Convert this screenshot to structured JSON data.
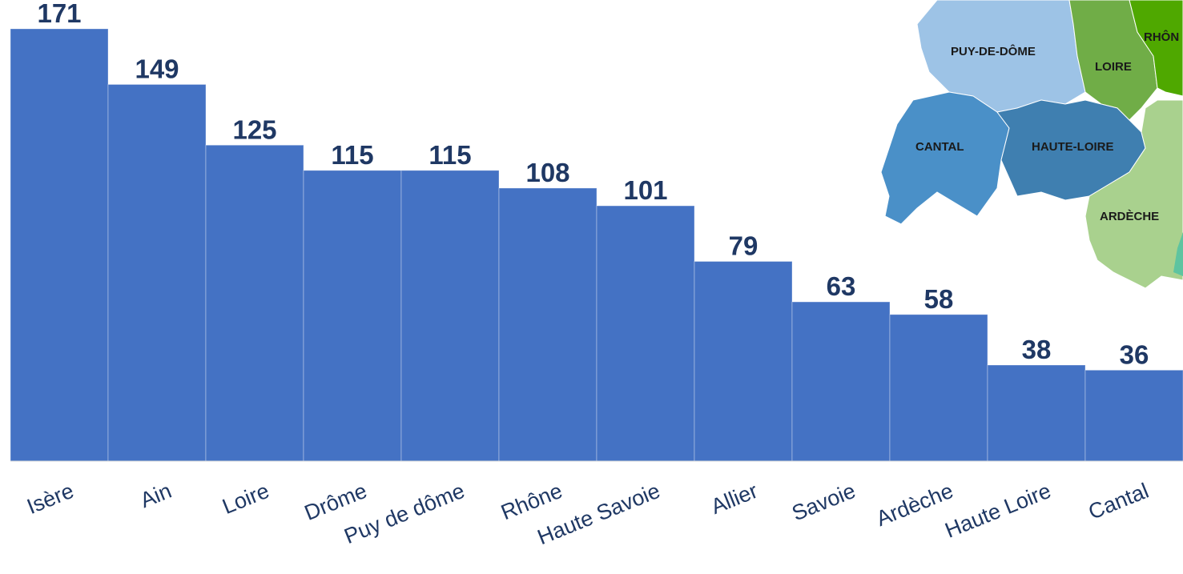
{
  "chart_data": {
    "type": "bar",
    "categories": [
      "Isère",
      "Ain",
      "Loire",
      "Drôme",
      "Puy de dôme",
      "Rhône",
      "Haute Savoie",
      "Allier",
      "Savoie",
      "Ardèche",
      "Haute Loire",
      "Cantal"
    ],
    "values": [
      171,
      149,
      125,
      115,
      115,
      108,
      101,
      79,
      63,
      58,
      38,
      36
    ],
    "ylim": [
      0,
      171
    ],
    "grid": false,
    "bar_color": "#4472c4",
    "label_color": "#1f3864"
  },
  "map": {
    "regions": [
      {
        "name": "PUY-DE-DÔME",
        "color": "#9dc3e6"
      },
      {
        "name": "LOIRE",
        "color": "#70ad47"
      },
      {
        "name": "RHÔN",
        "color": "#4fa800"
      },
      {
        "name": "CANTAL",
        "color": "#4a90c8"
      },
      {
        "name": "HAUTE-LOIRE",
        "color": "#3f7fb0"
      },
      {
        "name": "ARDÈCHE",
        "color": "#a9d18e"
      }
    ]
  }
}
